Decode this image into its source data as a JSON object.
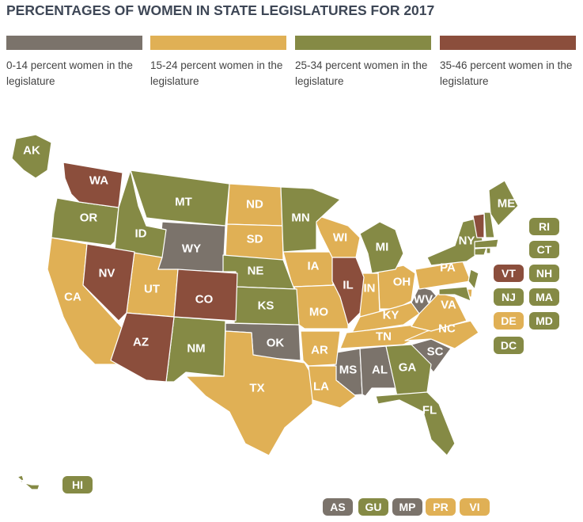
{
  "title": "PERCENTAGES OF WOMEN IN STATE LEGISLATURES FOR 2017",
  "legend": [
    {
      "label": "0-14 percent women in the legislature",
      "color": "#7b736b",
      "states": [
        "WY",
        "OK",
        "WV",
        "MS",
        "AL",
        "SC",
        "AS",
        "MP"
      ]
    },
    {
      "label": "15-24 percent women in the legislature",
      "color": "#e0b055",
      "states": [
        "ND",
        "SD",
        "CA",
        "UT",
        "TX",
        "IA",
        "MO",
        "AR",
        "LA",
        "WI",
        "IN",
        "OH",
        "KY",
        "TN",
        "NC",
        "VA",
        "PA",
        "DE",
        "PR",
        "VI"
      ]
    },
    {
      "label": "25-34 percent women in the legislature",
      "color": "#858a45",
      "states": [
        "AK",
        "OR",
        "MT",
        "ID",
        "NE",
        "KS",
        "NM",
        "MN",
        "MI",
        "GA",
        "FL",
        "NY",
        "ME",
        "NH",
        "MA",
        "RI",
        "CT",
        "NJ",
        "MD",
        "HI",
        "DC",
        "GU"
      ]
    },
    {
      "label": "35-46 percent women in the legislature",
      "color": "#8b4e3c",
      "states": [
        "WA",
        "NV",
        "CO",
        "AZ",
        "IL",
        "VT"
      ]
    }
  ]
}
